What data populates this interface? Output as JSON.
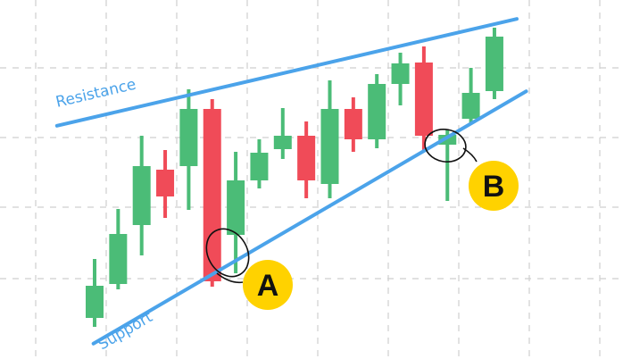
{
  "chart_data": {
    "type": "candlestick",
    "title": "",
    "xlabel": "",
    "ylabel": "",
    "grid": true,
    "ylim": [
      0,
      402
    ],
    "colors": {
      "up": "#4bbc77",
      "down": "#f04b58",
      "trendline": "#4ba3ea",
      "grid": "#cfcfcf",
      "badge": "#ffd200",
      "badge_text": "#111111"
    },
    "candles": [
      {
        "open": 46,
        "close": 82,
        "high": 112,
        "low": 36
      },
      {
        "open": 84,
        "close": 140,
        "high": 168,
        "low": 78
      },
      {
        "open": 150,
        "close": 216,
        "high": 250,
        "low": 116
      },
      {
        "open": 212,
        "close": 182,
        "high": 234,
        "low": 158
      },
      {
        "open": 216,
        "close": 280,
        "high": 302,
        "low": 167
      },
      {
        "open": 280,
        "close": 87,
        "high": 291,
        "low": 81
      },
      {
        "open": 139,
        "close": 200,
        "high": 232,
        "low": 96
      },
      {
        "open": 200,
        "close": 231,
        "high": 246,
        "low": 191
      },
      {
        "open": 235,
        "close": 250,
        "high": 281,
        "low": 224
      },
      {
        "open": 250,
        "close": 200,
        "high": 266,
        "low": 180
      },
      {
        "open": 196,
        "close": 280,
        "high": 312,
        "low": 180
      },
      {
        "open": 280,
        "close": 246,
        "high": 293,
        "low": 232
      },
      {
        "open": 246,
        "close": 308,
        "high": 319,
        "low": 236
      },
      {
        "open": 308,
        "close": 331,
        "high": 343,
        "low": 284
      },
      {
        "open": 332,
        "close": 250,
        "high": 350,
        "low": 232
      },
      {
        "open": 240,
        "close": 251,
        "high": 257,
        "low": 177
      },
      {
        "open": 269,
        "close": 298,
        "high": 326,
        "low": 264
      },
      {
        "open": 300,
        "close": 361,
        "high": 371,
        "low": 291
      }
    ],
    "trendlines": [
      {
        "name": "Resistance",
        "label": "Resistance",
        "from": [
          0,
          271
        ],
        "to": [
          17,
          375
        ]
      },
      {
        "name": "Support",
        "label": "Support",
        "from": [
          0,
          18
        ],
        "to": [
          17,
          279
        ]
      }
    ],
    "annotations": [
      {
        "label": "A",
        "candle": 6,
        "point": "low"
      },
      {
        "label": "B",
        "candle": 15,
        "point": "open"
      }
    ]
  }
}
